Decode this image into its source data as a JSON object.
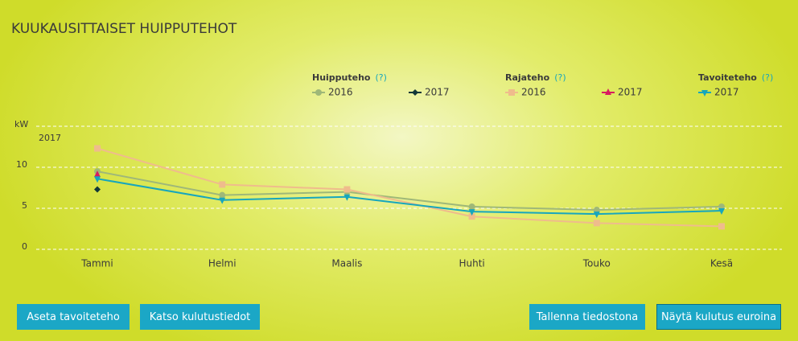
{
  "title": "KUUKAUSITTAISET HUIPPUTEHOT",
  "chart_data": {
    "type": "line",
    "y_unit_label": "kW",
    "year_label": "2017",
    "help_label": "(?)",
    "categories": [
      "Tammi",
      "Helmi",
      "Maalis",
      "Huhti",
      "Touko",
      "Kesä"
    ],
    "ylim": [
      0,
      15
    ],
    "yticks": [
      0,
      5,
      10
    ],
    "grid": true,
    "series_groups": [
      {
        "name": "Huipputeho",
        "series": [
          {
            "name": "2016",
            "color": "#9fb878",
            "marker": "circle",
            "values": [
              9.5,
              6.6,
              7.0,
              5.2,
              4.8,
              5.2
            ]
          },
          {
            "name": "2017",
            "color": "#123838",
            "marker": "diamond",
            "values": [
              7.3,
              null,
              null,
              null,
              null,
              null
            ]
          }
        ]
      },
      {
        "name": "Rajateho",
        "series": [
          {
            "name": "2016",
            "color": "#efbc8c",
            "marker": "square",
            "values": [
              12.3,
              7.9,
              7.3,
              4.0,
              3.2,
              2.8
            ]
          },
          {
            "name": "2017",
            "color": "#d81b60",
            "marker": "triangle-up",
            "values": [
              9.1,
              null,
              null,
              null,
              null,
              null
            ]
          }
        ]
      },
      {
        "name": "Tavoiteteho",
        "series": [
          {
            "name": "2017",
            "color": "#17a6bd",
            "marker": "triangle-down",
            "values": [
              8.6,
              6.0,
              6.4,
              4.6,
              4.3,
              4.7
            ]
          }
        ]
      }
    ]
  },
  "buttons": [
    "Aseta tavoiteteho",
    "Katso kulutustiedot",
    "Tallenna tiedostona",
    "Näytä kulutus euroina"
  ]
}
